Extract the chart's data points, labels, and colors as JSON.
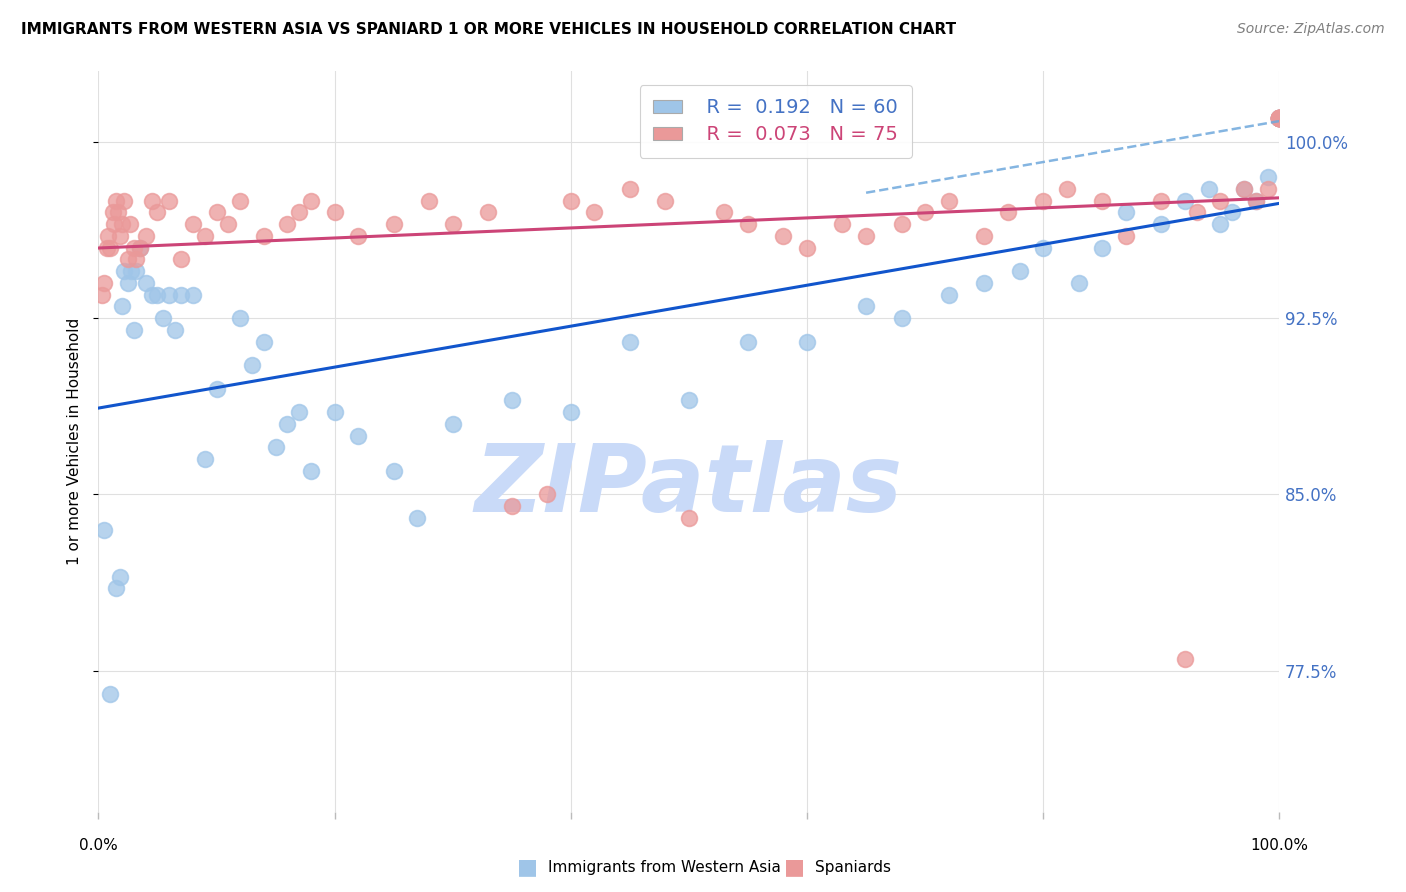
{
  "title": "IMMIGRANTS FROM WESTERN ASIA VS SPANIARD 1 OR MORE VEHICLES IN HOUSEHOLD CORRELATION CHART",
  "source": "Source: ZipAtlas.com",
  "ylabel": "1 or more Vehicles in Household",
  "legend_label_blue": "Immigrants from Western Asia",
  "legend_label_pink": "Spaniards",
  "R_blue": 0.192,
  "N_blue": 60,
  "R_pink": 0.073,
  "N_pink": 75,
  "xmin": 0.0,
  "xmax": 100.0,
  "ymin": 71.5,
  "ymax": 103.0,
  "yticks": [
    77.5,
    85.0,
    92.5,
    100.0
  ],
  "blue_color": "#9fc5e8",
  "pink_color": "#ea9999",
  "blue_line_color": "#1155cc",
  "pink_line_color": "#cc4477",
  "dashed_line_color": "#6fa8dc",
  "watermark_color": "#c9daf8",
  "background_color": "#ffffff",
  "grid_color": "#e0e0e0",
  "blue_x": [
    0.5,
    1.0,
    1.5,
    1.8,
    2.0,
    2.2,
    2.5,
    2.8,
    3.0,
    3.2,
    3.5,
    4.0,
    4.5,
    5.0,
    5.5,
    6.0,
    6.5,
    7.0,
    8.0,
    9.0,
    10.0,
    12.0,
    13.0,
    14.0,
    15.0,
    16.0,
    17.0,
    18.0,
    20.0,
    22.0,
    25.0,
    27.0,
    30.0,
    35.0,
    40.0,
    45.0,
    50.0,
    55.0,
    60.0,
    65.0,
    68.0,
    72.0,
    75.0,
    78.0,
    80.0,
    83.0,
    85.0,
    87.0,
    90.0,
    92.0,
    94.0,
    95.0,
    96.0,
    97.0,
    98.0,
    99.0,
    100.0,
    100.0,
    100.0,
    100.0
  ],
  "blue_y": [
    83.5,
    76.5,
    81.0,
    81.5,
    93.0,
    94.5,
    94.0,
    94.5,
    92.0,
    94.5,
    95.5,
    94.0,
    93.5,
    93.5,
    92.5,
    93.5,
    92.0,
    93.5,
    93.5,
    86.5,
    89.5,
    92.5,
    90.5,
    91.5,
    87.0,
    88.0,
    88.5,
    86.0,
    88.5,
    87.5,
    86.0,
    84.0,
    88.0,
    89.0,
    88.5,
    91.5,
    89.0,
    91.5,
    91.5,
    93.0,
    92.5,
    93.5,
    94.0,
    94.5,
    95.5,
    94.0,
    95.5,
    97.0,
    96.5,
    97.5,
    98.0,
    96.5,
    97.0,
    98.0,
    97.5,
    98.5,
    101.0,
    101.0,
    101.0,
    101.0
  ],
  "pink_x": [
    0.3,
    0.5,
    0.7,
    0.8,
    1.0,
    1.2,
    1.3,
    1.5,
    1.7,
    1.8,
    2.0,
    2.2,
    2.5,
    2.7,
    3.0,
    3.2,
    3.5,
    4.0,
    4.5,
    5.0,
    6.0,
    7.0,
    8.0,
    9.0,
    10.0,
    11.0,
    12.0,
    14.0,
    16.0,
    17.0,
    18.0,
    20.0,
    22.0,
    25.0,
    28.0,
    30.0,
    33.0,
    35.0,
    38.0,
    40.0,
    42.0,
    45.0,
    48.0,
    50.0,
    53.0,
    55.0,
    58.0,
    60.0,
    63.0,
    65.0,
    68.0,
    70.0,
    72.0,
    75.0,
    77.0,
    80.0,
    82.0,
    85.0,
    87.0,
    90.0,
    92.0,
    93.0,
    95.0,
    97.0,
    98.0,
    99.0,
    100.0,
    100.0,
    100.0,
    100.0,
    100.0,
    100.0,
    100.0,
    100.0,
    100.0
  ],
  "pink_y": [
    93.5,
    94.0,
    95.5,
    96.0,
    95.5,
    97.0,
    96.5,
    97.5,
    97.0,
    96.0,
    96.5,
    97.5,
    95.0,
    96.5,
    95.5,
    95.0,
    95.5,
    96.0,
    97.5,
    97.0,
    97.5,
    95.0,
    96.5,
    96.0,
    97.0,
    96.5,
    97.5,
    96.0,
    96.5,
    97.0,
    97.5,
    97.0,
    96.0,
    96.5,
    97.5,
    96.5,
    97.0,
    84.5,
    85.0,
    97.5,
    97.0,
    98.0,
    97.5,
    84.0,
    97.0,
    96.5,
    96.0,
    95.5,
    96.5,
    96.0,
    96.5,
    97.0,
    97.5,
    96.0,
    97.0,
    97.5,
    98.0,
    97.5,
    96.0,
    97.5,
    78.0,
    97.0,
    97.5,
    98.0,
    97.5,
    98.0,
    101.0,
    101.0,
    101.0,
    101.0,
    101.0,
    101.0,
    101.0,
    101.0,
    101.0
  ]
}
